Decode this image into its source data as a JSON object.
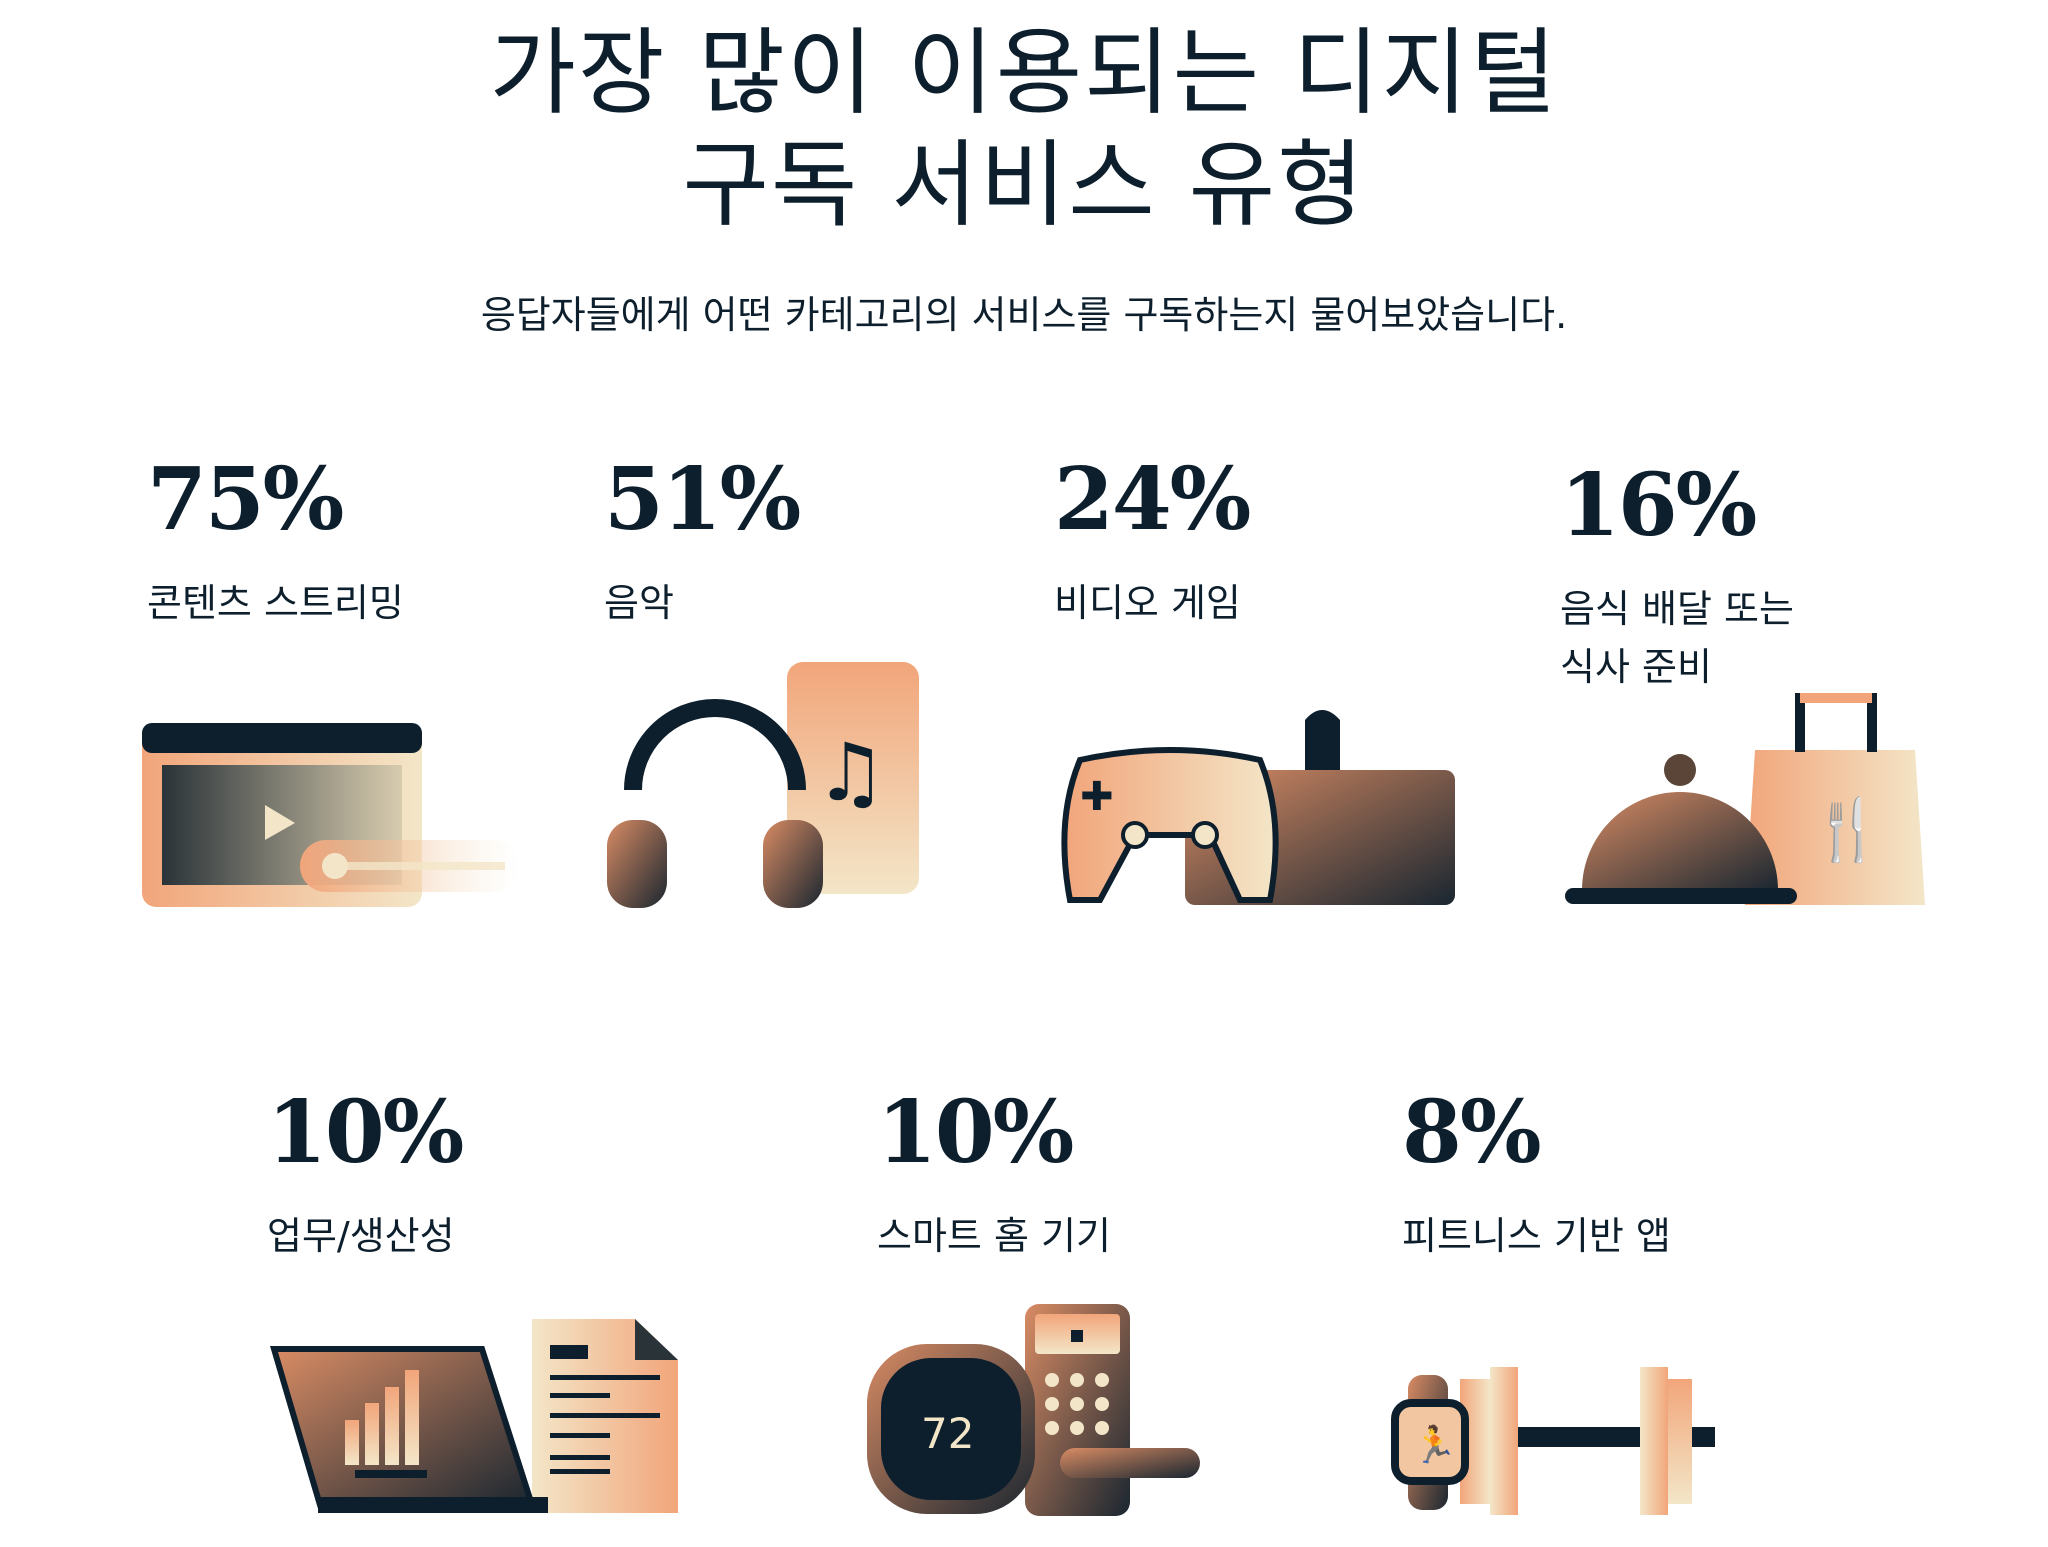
{
  "header": {
    "title_line1": "가장 많이 이용되는 디지털",
    "title_line2": "구독 서비스 유형",
    "subtitle": "응답자들에게 어떤 카테고리의 서비스를 구독하는지 물어보았습니다."
  },
  "stats": [
    {
      "percent": "75%",
      "label": "콘텐츠 스트리밍",
      "icon": "video-streaming-icon"
    },
    {
      "percent": "51%",
      "label": "음악",
      "icon": "headphones-music-icon"
    },
    {
      "percent": "24%",
      "label": "비디오 게임",
      "icon": "game-controller-icon"
    },
    {
      "percent": "16%",
      "label": "음식 배달 또는\n식사 준비",
      "icon": "food-delivery-icon"
    },
    {
      "percent": "10%",
      "label": "업무/생산성",
      "icon": "laptop-document-icon"
    },
    {
      "percent": "10%",
      "label": "스마트 홈 기기",
      "icon": "smart-home-icon"
    },
    {
      "percent": "8%",
      "label": "피트니스 기반 앱",
      "icon": "fitness-watch-icon"
    }
  ],
  "thermostat_reading": "72",
  "colors": {
    "text": "#0d1f2d",
    "accent": "#f2a57a",
    "cream": "#f3e6c8",
    "dark": "#0d1f2d"
  }
}
